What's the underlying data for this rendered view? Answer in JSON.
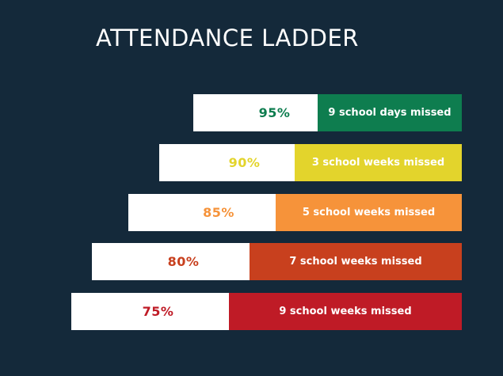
{
  "title": "ATTENDANCE LADDER",
  "rungs": [
    {
      "percent": "95%",
      "message": "9 school days missed",
      "color": "#0e7d4f"
    },
    {
      "percent": "90%",
      "message": "3 school weeks missed",
      "color": "#e3d42c"
    },
    {
      "percent": "85%",
      "message": "5 school weeks missed",
      "color": "#f6933a"
    },
    {
      "percent": "80%",
      "message": "7 school weeks missed",
      "color": "#c8401e"
    },
    {
      "percent": "75%",
      "message": "9 school weeks missed",
      "color": "#bf1b26"
    }
  ]
}
